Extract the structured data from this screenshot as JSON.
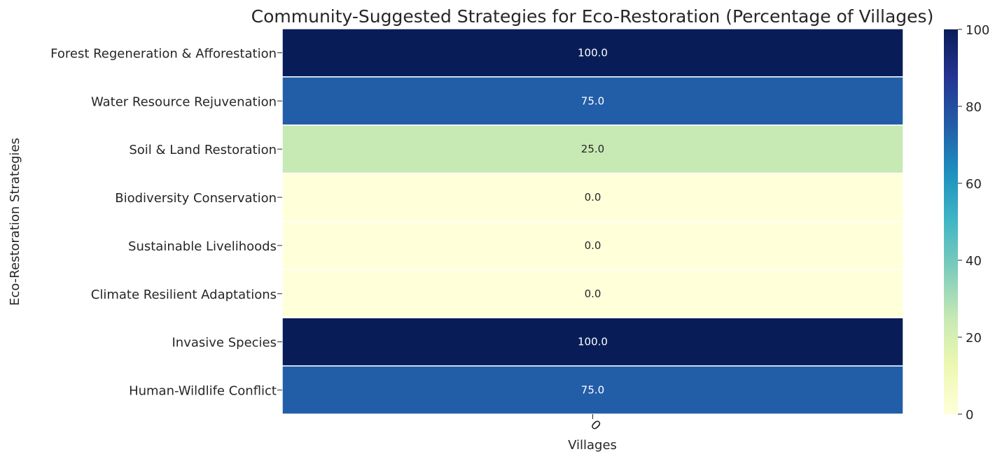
{
  "chart_data": {
    "type": "heatmap",
    "title": "Community-Suggested Strategies for Eco-Restoration (Percentage of Villages)",
    "xlabel": "Villages",
    "ylabel": "Eco-Restoration Strategies",
    "x_categories": [
      "0"
    ],
    "y_categories": [
      "Forest Regeneration & Afforestation",
      "Water Resource Rejuvenation",
      "Soil & Land Restoration",
      "Biodiversity Conservation",
      "Sustainable Livelihoods",
      "Climate Resilient Adaptations",
      "Invasive Species",
      "Human-Wildlife Conflict"
    ],
    "values": [
      100,
      75,
      25,
      0,
      0,
      0,
      100,
      75
    ],
    "value_labels": [
      "100.0",
      "75.0",
      "25.0",
      "0.0",
      "0.0",
      "0.0",
      "100.0",
      "75.0"
    ],
    "colormap": "YlGnBu",
    "vmin": 0,
    "vmax": 100,
    "colorbar_ticks": [
      "0",
      "20",
      "40",
      "60",
      "80",
      "100"
    ],
    "colorbar_tick_values": [
      0,
      20,
      40,
      60,
      80,
      100
    ]
  }
}
